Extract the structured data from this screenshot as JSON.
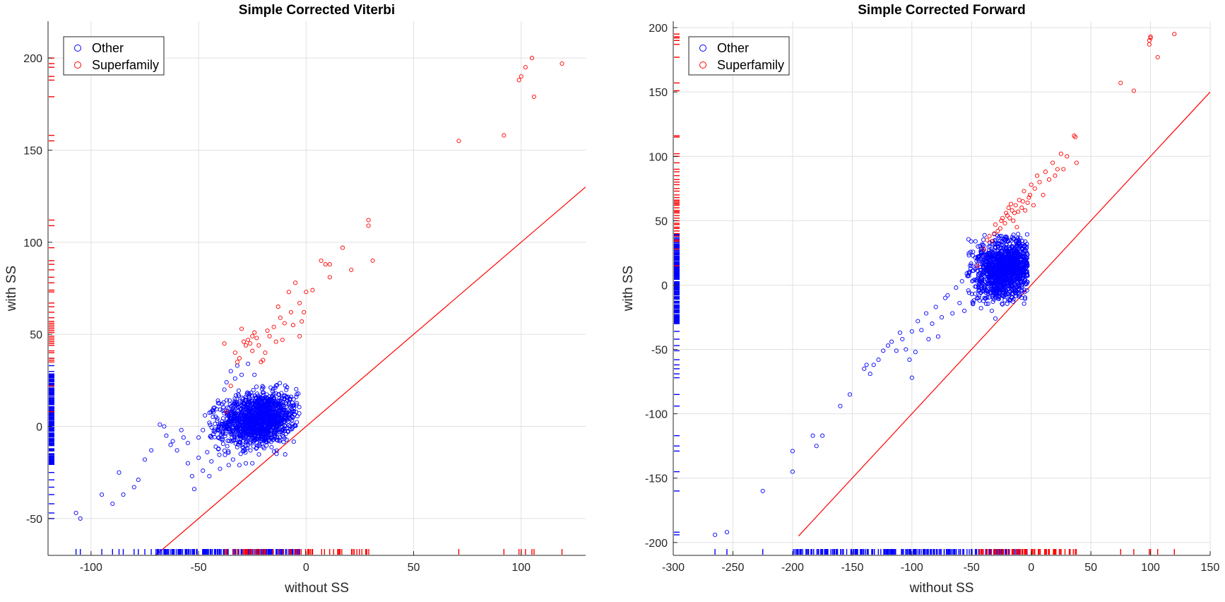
{
  "colors": {
    "other": "#0000ff",
    "superfamily": "#ff0000",
    "grid": "#e0e0e0",
    "axis": "#262626"
  },
  "chart_data": [
    {
      "type": "scatter",
      "title": "Simple Corrected Viterbi",
      "xlabel": "without SS",
      "ylabel": "with SS",
      "xlim": [
        -120,
        130
      ],
      "ylim": [
        -70,
        220
      ],
      "xticks": [
        -100,
        -50,
        0,
        50,
        100
      ],
      "yticks": [
        -50,
        0,
        50,
        100,
        150,
        200
      ],
      "grid": true,
      "legend": {
        "position": "top-left",
        "entries": [
          "Other",
          "Superfamily"
        ]
      },
      "diagonal": {
        "x": [
          -70,
          130
        ],
        "y": [
          -70,
          130
        ]
      },
      "series": [
        {
          "name": "Other",
          "color": "#0000ff",
          "cluster": {
            "cx": -22,
            "cy": 4,
            "sx": 9,
            "sy": 7,
            "n": 1400,
            "xmin": -45,
            "xmax": -3,
            "ymin": -22,
            "ymax": 30
          },
          "points": [
            [
              -107,
              -47
            ],
            [
              -105,
              -50
            ],
            [
              -95,
              -37
            ],
            [
              -90,
              -42
            ],
            [
              -87,
              -25
            ],
            [
              -85,
              -37
            ],
            [
              -80,
              -33
            ],
            [
              -78,
              -29
            ],
            [
              -75,
              -18
            ],
            [
              -72,
              -13
            ],
            [
              -68,
              1
            ],
            [
              -66,
              0
            ],
            [
              -65,
              -5
            ],
            [
              -63,
              -10
            ],
            [
              -62,
              -8
            ],
            [
              -60,
              -13
            ],
            [
              -58,
              -2
            ],
            [
              -57,
              -6
            ],
            [
              -55,
              -9
            ],
            [
              -55,
              -20
            ],
            [
              -53,
              -27
            ],
            [
              -52,
              -34
            ],
            [
              -50,
              -17
            ],
            [
              -50,
              -6
            ],
            [
              -48,
              -24
            ],
            [
              -48,
              -2
            ],
            [
              -47,
              6
            ],
            [
              -46,
              -14
            ],
            [
              -45,
              -27
            ],
            [
              -45,
              2
            ],
            [
              -44,
              -19
            ],
            [
              -43,
              10
            ],
            [
              -42,
              -11
            ],
            [
              -41,
              14
            ],
            [
              -40,
              -23
            ],
            [
              -39,
              -3
            ],
            [
              -38,
              20
            ],
            [
              -37,
              24
            ],
            [
              -36,
              -21
            ],
            [
              -35,
              30
            ],
            [
              -34,
              -18
            ],
            [
              -33,
              26
            ],
            [
              -32,
              33
            ],
            [
              -31,
              -21
            ],
            [
              -30,
              28
            ],
            [
              -28,
              -20
            ],
            [
              -27,
              34
            ],
            [
              -25,
              -20
            ],
            [
              -24,
              28
            ]
          ]
        },
        {
          "name": "Superfamily",
          "color": "#ff0000",
          "points": [
            [
              -38,
              45
            ],
            [
              -37,
              8
            ],
            [
              -35,
              22
            ],
            [
              -33,
              40
            ],
            [
              -32,
              35
            ],
            [
              -31,
              37
            ],
            [
              -30,
              53
            ],
            [
              -29,
              46
            ],
            [
              -28,
              44
            ],
            [
              -27,
              47
            ],
            [
              -26,
              45
            ],
            [
              -25,
              41
            ],
            [
              -25,
              49
            ],
            [
              -24,
              51
            ],
            [
              -23,
              48
            ],
            [
              -22,
              44
            ],
            [
              -21,
              35
            ],
            [
              -20,
              36
            ],
            [
              -19,
              40
            ],
            [
              -18,
              52
            ],
            [
              -17,
              49
            ],
            [
              -15,
              54
            ],
            [
              -14,
              46
            ],
            [
              -13,
              65
            ],
            [
              -12,
              59
            ],
            [
              -11,
              47
            ],
            [
              -10,
              56
            ],
            [
              -8,
              73
            ],
            [
              -7,
              62
            ],
            [
              -6,
              55
            ],
            [
              -5,
              78
            ],
            [
              -3,
              49
            ],
            [
              -3,
              67
            ],
            [
              -2,
              57
            ],
            [
              -1,
              62
            ],
            [
              0,
              73
            ],
            [
              3,
              74
            ],
            [
              7,
              90
            ],
            [
              9,
              88
            ],
            [
              11,
              88
            ],
            [
              11,
              81
            ],
            [
              17,
              97
            ],
            [
              21,
              85
            ],
            [
              29,
              112
            ],
            [
              29,
              109
            ],
            [
              31,
              90
            ],
            [
              71,
              155
            ],
            [
              92,
              158
            ],
            [
              99,
              188
            ],
            [
              100,
              190
            ],
            [
              102,
              195
            ],
            [
              105,
              200
            ],
            [
              106,
              179
            ],
            [
              119,
              197
            ]
          ]
        }
      ],
      "rug": {
        "x_superfamily_range": [
          -40,
          32
        ],
        "x_superfamily_extra": [
          71,
          92,
          99,
          100,
          102,
          105,
          106,
          119
        ],
        "x_other_range": [
          -70,
          -3
        ],
        "x_other_extra": [
          -107,
          -105,
          -95,
          -90,
          -87,
          -85,
          -80,
          -78,
          -75,
          -72
        ],
        "y_superfamily": [
          200,
          197,
          195,
          190,
          188,
          179,
          158,
          155,
          112,
          109,
          97,
          90,
          88,
          85,
          81,
          78,
          74,
          73,
          67,
          65,
          62,
          59,
          57,
          56,
          55,
          54,
          53,
          52,
          51,
          49,
          48,
          47,
          46,
          45,
          44,
          41,
          40,
          37,
          36,
          35,
          22,
          8
        ],
        "y_other_range": [
          -21,
          30
        ],
        "y_other_extra": [
          37,
          33,
          -25,
          -29,
          -33,
          -37,
          -42,
          -47,
          -50
        ]
      }
    },
    {
      "type": "scatter",
      "title": "Simple Corrected Forward",
      "xlabel": "without SS",
      "ylabel": "with SS",
      "xlim": [
        -300,
        150
      ],
      "ylim": [
        -210,
        205
      ],
      "xticks": [
        -300,
        -250,
        -200,
        -150,
        -100,
        -50,
        0,
        50,
        100,
        150
      ],
      "yticks": [
        -200,
        -150,
        -100,
        -50,
        0,
        50,
        100,
        150,
        200
      ],
      "grid": true,
      "legend": {
        "position": "top-left",
        "entries": [
          "Other",
          "Superfamily"
        ]
      },
      "diagonal": {
        "x": [
          -195,
          150
        ],
        "y": [
          -195,
          150
        ]
      },
      "series": [
        {
          "name": "Other",
          "color": "#0000ff",
          "cluster": {
            "cx": -22,
            "cy": 12,
            "sx": 13,
            "sy": 12,
            "n": 1300,
            "xmin": -55,
            "xmax": -3,
            "ymin": -15,
            "ymax": 40
          },
          "points": [
            [
              -265,
              -194
            ],
            [
              -255,
              -192
            ],
            [
              -225,
              -160
            ],
            [
              -200,
              -145
            ],
            [
              -200,
              -129
            ],
            [
              -180,
              -125
            ],
            [
              -183,
              -117
            ],
            [
              -175,
              -117
            ],
            [
              -160,
              -94
            ],
            [
              -152,
              -85
            ],
            [
              -140,
              -65
            ],
            [
              -138,
              -62
            ],
            [
              -135,
              -69
            ],
            [
              -132,
              -62
            ],
            [
              -128,
              -58
            ],
            [
              -124,
              -51
            ],
            [
              -120,
              -47
            ],
            [
              -117,
              -44
            ],
            [
              -113,
              -51
            ],
            [
              -110,
              -37
            ],
            [
              -108,
              -42
            ],
            [
              -105,
              -50
            ],
            [
              -102,
              -58
            ],
            [
              -100,
              -36
            ],
            [
              -100,
              -72
            ],
            [
              -97,
              -52
            ],
            [
              -95,
              -28
            ],
            [
              -92,
              -35
            ],
            [
              -88,
              -22
            ],
            [
              -86,
              -42
            ],
            [
              -83,
              -30
            ],
            [
              -80,
              -17
            ],
            [
              -78,
              -40
            ],
            [
              -75,
              -25
            ],
            [
              -72,
              -10
            ],
            [
              -70,
              -8
            ],
            [
              -66,
              -22
            ],
            [
              -63,
              -2
            ],
            [
              -60,
              -14
            ],
            [
              -58,
              3
            ],
            [
              -56,
              -20
            ],
            [
              -54,
              9
            ],
            [
              -52,
              -6
            ],
            [
              -50,
              15
            ],
            [
              -48,
              -12
            ],
            [
              -45,
              22
            ],
            [
              -42,
              -18
            ],
            [
              -40,
              28
            ],
            [
              -36,
              -5
            ],
            [
              -33,
              -20
            ],
            [
              -30,
              -26
            ],
            [
              -28,
              30
            ],
            [
              -24,
              -15
            ],
            [
              -22,
              35
            ],
            [
              -18,
              -12
            ]
          ]
        },
        {
          "name": "Superfamily",
          "color": "#ff0000",
          "points": [
            [
              -45,
              15
            ],
            [
              -40,
              28
            ],
            [
              -37,
              35
            ],
            [
              -35,
              38
            ],
            [
              -33,
              34
            ],
            [
              -31,
              40
            ],
            [
              -30,
              47
            ],
            [
              -28,
              42
            ],
            [
              -26,
              44
            ],
            [
              -25,
              50
            ],
            [
              -24,
              52
            ],
            [
              -22,
              48
            ],
            [
              -21,
              56
            ],
            [
              -20,
              54
            ],
            [
              -19,
              60
            ],
            [
              -18,
              52
            ],
            [
              -17,
              63
            ],
            [
              -16,
              58
            ],
            [
              -15,
              50
            ],
            [
              -14,
              56
            ],
            [
              -13,
              62
            ],
            [
              -12,
              45
            ],
            [
              -11,
              57
            ],
            [
              -10,
              66
            ],
            [
              -8,
              60
            ],
            [
              -7,
              65
            ],
            [
              -6,
              73
            ],
            [
              -5,
              58
            ],
            [
              -3,
              64
            ],
            [
              -2,
              68
            ],
            [
              -1,
              70
            ],
            [
              0,
              78
            ],
            [
              2,
              62
            ],
            [
              3,
              75
            ],
            [
              5,
              85
            ],
            [
              7,
              80
            ],
            [
              10,
              70
            ],
            [
              12,
              88
            ],
            [
              15,
              82
            ],
            [
              18,
              95
            ],
            [
              20,
              85
            ],
            [
              22,
              90
            ],
            [
              25,
              102
            ],
            [
              27,
              90
            ],
            [
              30,
              100
            ],
            [
              36,
              116
            ],
            [
              37,
              115
            ],
            [
              38,
              95
            ],
            [
              75,
              157
            ],
            [
              86,
              151
            ],
            [
              99,
              187
            ],
            [
              99,
              190
            ],
            [
              100,
              192
            ],
            [
              100,
              193
            ],
            [
              106,
              177
            ],
            [
              120,
              195
            ]
          ]
        }
      ],
      "rug": {
        "x_superfamily_range": [
          -45,
          38
        ],
        "x_superfamily_extra": [
          75,
          86,
          99,
          100,
          106,
          120
        ],
        "x_other_range": [
          -200,
          -3
        ],
        "x_other_extra": [
          -265,
          -255,
          -225
        ],
        "y_superfamily": [
          195,
          193,
          192,
          190,
          187,
          177,
          157,
          151,
          116,
          115,
          102,
          100,
          95,
          90,
          88,
          85,
          82,
          80,
          78,
          75,
          73,
          70,
          68,
          66,
          65,
          64,
          63,
          62,
          60,
          58,
          57,
          56,
          54,
          52,
          50,
          48,
          47,
          45,
          44,
          42,
          40,
          38,
          35,
          34,
          28,
          15
        ],
        "y_other_range": [
          -30,
          40
        ],
        "y_other_extra": [
          -36,
          -42,
          -47,
          -51,
          -58,
          -62,
          -65,
          -69,
          -72,
          -85,
          -94,
          -117,
          -125,
          -129,
          -145,
          -160,
          -192,
          -194
        ]
      }
    }
  ]
}
